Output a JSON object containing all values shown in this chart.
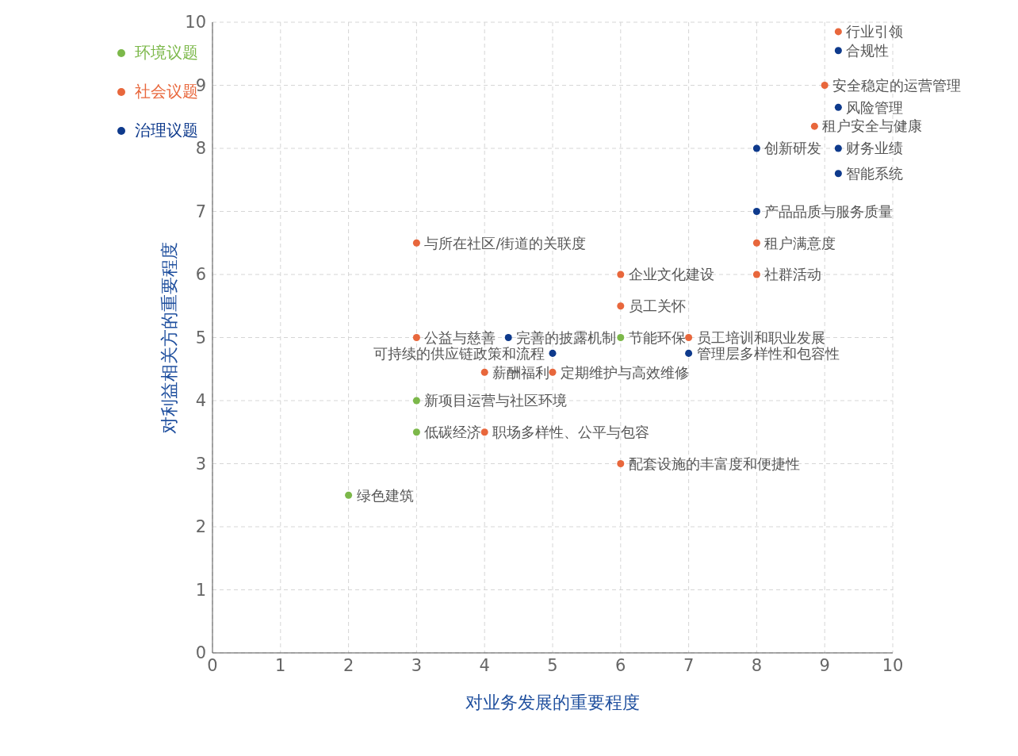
{
  "chart_data": {
    "type": "scatter",
    "xlabel": "对业务发展的重要程度",
    "ylabel": "对利益相关方的重要程度",
    "xlim": [
      0,
      10
    ],
    "ylim": [
      0,
      10
    ],
    "xticks": [
      0,
      1,
      2,
      3,
      4,
      5,
      6,
      7,
      8,
      9,
      10
    ],
    "yticks": [
      0,
      1,
      2,
      3,
      4,
      5,
      6,
      7,
      8,
      9,
      10
    ],
    "grid": true,
    "legend": "top left",
    "marker": "circle",
    "series": [
      {
        "name": "环境议题",
        "color": "#7cb84a",
        "x": [
          6,
          3,
          3,
          2
        ],
        "values": [
          5,
          4,
          3.5,
          2.5
        ]
      },
      {
        "name": "社会议题",
        "color": "#e8673c",
        "x": [
          9.2,
          9,
          8.85,
          8,
          8,
          3,
          6,
          6,
          3,
          7,
          4,
          5,
          4,
          6
        ],
        "values": [
          9.85,
          9,
          8.35,
          6.5,
          6,
          6.5,
          6,
          5.5,
          5,
          5,
          4.45,
          4.45,
          3.5,
          3
        ]
      },
      {
        "name": "治理议题",
        "color": "#0e3a8c",
        "x": [
          9.2,
          9.2,
          8,
          9.2,
          9.2,
          8,
          4.35,
          5,
          7
        ],
        "values": [
          9.55,
          8.65,
          8,
          8,
          7.6,
          7,
          5,
          4.75,
          4.75
        ]
      }
    ],
    "annotations": [
      {
        "text": "行业引领",
        "x": 9.2,
        "y": 9.85
      },
      {
        "text": "合规性",
        "x": 9.2,
        "y": 9.55
      },
      {
        "text": "安全稳定的运营管理",
        "x": 9,
        "y": 9
      },
      {
        "text": "风险管理",
        "x": 9.2,
        "y": 8.65
      },
      {
        "text": "租户安全与健康",
        "x": 8.85,
        "y": 8.35
      },
      {
        "text": "创新研发",
        "x": 8,
        "y": 8
      },
      {
        "text": "财务业绩",
        "x": 9.2,
        "y": 8
      },
      {
        "text": "智能系统",
        "x": 9.2,
        "y": 7.6
      },
      {
        "text": "产品品质与服务质量",
        "x": 8,
        "y": 7
      },
      {
        "text": "租户满意度",
        "x": 8,
        "y": 6.5
      },
      {
        "text": "社群活动",
        "x": 8,
        "y": 6
      },
      {
        "text": "与所在社区/街道的关联度",
        "x": 3,
        "y": 6.5
      },
      {
        "text": "企业文化建设",
        "x": 6,
        "y": 6
      },
      {
        "text": "员工关怀",
        "x": 6,
        "y": 5.5
      },
      {
        "text": "公益与慈善",
        "x": 3,
        "y": 5
      },
      {
        "text": "完善的披露机制",
        "x": 4.35,
        "y": 5
      },
      {
        "text": "节能环保",
        "x": 6,
        "y": 5
      },
      {
        "text": "员工培训和职业发展",
        "x": 7,
        "y": 5
      },
      {
        "text": "可持续的供应链政策和流程",
        "x": 5,
        "y": 4.75
      },
      {
        "text": "管理层多样性和包容性",
        "x": 7,
        "y": 4.75
      },
      {
        "text": "薪酬福利",
        "x": 4,
        "y": 4.45
      },
      {
        "text": "定期维护与高效维修",
        "x": 5,
        "y": 4.45
      },
      {
        "text": "新项目运营与社区环境",
        "x": 3,
        "y": 4
      },
      {
        "text": "低碳经济",
        "x": 3,
        "y": 3.5
      },
      {
        "text": "职场多样性、公平与包容",
        "x": 4,
        "y": 3.5
      },
      {
        "text": "配套设施的丰富度和便捷性",
        "x": 6,
        "y": 3
      },
      {
        "text": "绿色建筑",
        "x": 2,
        "y": 2.5
      }
    ]
  }
}
